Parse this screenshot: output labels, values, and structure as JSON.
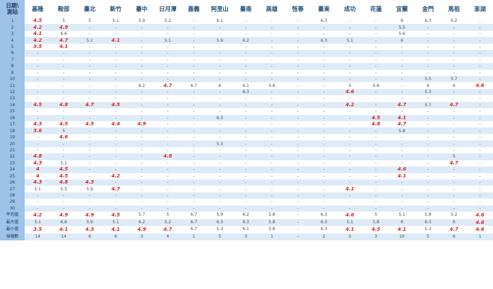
{
  "corner": [
    "日期\\",
    "測站"
  ],
  "stations": [
    "基隆",
    "鞍部",
    "臺北",
    "新竹",
    "臺中",
    "日月潭",
    "嘉義",
    "阿里山",
    "臺南",
    "高雄",
    "恆春",
    "臺東",
    "成功",
    "花蓮",
    "宜蘭",
    "金門",
    "馬祖",
    "澎湖"
  ],
  "rows": [
    {
      "label": "1",
      "cells": [
        "4.5",
        "5",
        "5",
        "5.1",
        "5.9",
        "5.2",
        "-",
        "6.1",
        "-",
        "-",
        "-",
        "6.3",
        "-",
        "-",
        "6",
        "6.3",
        "5.2",
        "-"
      ],
      "hl": [
        0
      ]
    },
    {
      "label": "2",
      "cells": [
        "4.2",
        "4.9",
        "-",
        "-",
        "-",
        "-",
        "-",
        "-",
        "-",
        "-",
        "-",
        "-",
        "-",
        "-",
        "5.5",
        "-",
        "-",
        "-"
      ],
      "hl": [
        0,
        1
      ]
    },
    {
      "label": "3",
      "cells": [
        "4.1",
        "6.6",
        "-",
        "-",
        "-",
        "-",
        "-",
        "-",
        "-",
        "-",
        "-",
        "-",
        "-",
        "-",
        "5.6",
        "-",
        "-",
        "-"
      ],
      "hl": [
        0
      ]
    },
    {
      "label": "4",
      "cells": [
        "4.2",
        "4.7",
        "5.1",
        "4.1",
        "-",
        "5.1",
        "-",
        "5.9",
        "6.2",
        "-",
        "-",
        "6.3",
        "5.1",
        "-",
        "6",
        "-",
        "-",
        "-"
      ],
      "hl": [
        0,
        1,
        3
      ]
    },
    {
      "label": "5",
      "cells": [
        "3.5",
        "4.1",
        "-",
        "-",
        "-",
        "-",
        "-",
        "-",
        "-",
        "-",
        "-",
        "-",
        "-",
        "-",
        "-",
        "-",
        "-",
        "-"
      ],
      "hl": [
        0,
        1
      ]
    },
    {
      "label": "6",
      "cells": [
        "-",
        "-",
        "-",
        "-",
        "-",
        "-",
        "-",
        "-",
        "-",
        "-",
        "-",
        "-",
        "-",
        "-",
        "-",
        "-",
        "-",
        "-"
      ],
      "hl": []
    },
    {
      "label": "7",
      "cells": [
        "-",
        "-",
        "-",
        "-",
        "-",
        "-",
        "-",
        "-",
        "-",
        "-",
        "-",
        "-",
        "-",
        "-",
        "-",
        "-",
        "-",
        "-"
      ],
      "hl": []
    },
    {
      "label": "8",
      "cells": [
        "-",
        "-",
        "-",
        "-",
        "-",
        "-",
        "-",
        "-",
        "-",
        "-",
        "-",
        "-",
        "-",
        "-",
        "-",
        "-",
        "-",
        "-"
      ],
      "hl": []
    },
    {
      "label": "9",
      "cells": [
        "-",
        "-",
        "-",
        "-",
        "-",
        "-",
        "-",
        "-",
        "-",
        "-",
        "-",
        "-",
        "-",
        "-",
        "-",
        "-",
        "-",
        "-"
      ],
      "hl": []
    },
    {
      "label": "10",
      "cells": [
        "-",
        "-",
        "-",
        "-",
        "-",
        "-",
        "-",
        "-",
        "-",
        "-",
        "-",
        "-",
        "-",
        "-",
        "-",
        "5.5",
        "5.7",
        "-"
      ],
      "hl": []
    },
    {
      "label": "11",
      "cells": [
        "-",
        "-",
        "-",
        "-",
        "6.2",
        "4.7",
        "6.7",
        "6",
        "6.1",
        "5.8",
        "-",
        "-",
        "5",
        "5.8",
        "-",
        "6",
        "6",
        "4.6"
      ],
      "hl": [
        5,
        17
      ]
    },
    {
      "label": "12",
      "cells": [
        "-",
        "-",
        "-",
        "-",
        "-",
        "-",
        "-",
        "-",
        "6.3",
        "-",
        "-",
        "-",
        "4.6",
        "-",
        "-",
        "5.3",
        "-",
        "-"
      ],
      "hl": [
        12
      ]
    },
    {
      "label": "13",
      "cells": [
        "-",
        "-",
        "-",
        "-",
        "-",
        "-",
        "-",
        "-",
        "-",
        "-",
        "-",
        "-",
        "-",
        "-",
        "-",
        "-",
        "-",
        "-"
      ],
      "hl": []
    },
    {
      "label": "14",
      "cells": [
        "4.5",
        "4.8",
        "4.7",
        "4.5",
        "-",
        "-",
        "-",
        "-",
        "-",
        "-",
        "-",
        "-",
        "4.2",
        "-",
        "4.7",
        "5.7",
        "4.7",
        "-"
      ],
      "hl": [
        0,
        1,
        2,
        3,
        12,
        14,
        16
      ]
    },
    {
      "label": "15",
      "cells": [
        "-",
        "-",
        "-",
        "-",
        "-",
        "-",
        "-",
        "-",
        "-",
        "-",
        "-",
        "-",
        "-",
        "-",
        "-",
        "-",
        "-",
        "-"
      ],
      "hl": []
    },
    {
      "label": "16",
      "cells": [
        "-",
        "-",
        "-",
        "-",
        "-",
        "-",
        "-",
        "6.3",
        "-",
        "-",
        "-",
        "-",
        "-",
        "4.5",
        "4.1",
        "-",
        "-",
        "-"
      ],
      "hl": [
        13,
        14
      ]
    },
    {
      "label": "17",
      "cells": [
        "4.3",
        "4.5",
        "4.5",
        "4.4",
        "4.9",
        "-",
        "-",
        "-",
        "-",
        "-",
        "-",
        "-",
        "-",
        "4.8",
        "4.7",
        "-",
        "-",
        "-"
      ],
      "hl": [
        0,
        1,
        2,
        3,
        4,
        13,
        14
      ]
    },
    {
      "label": "18",
      "cells": [
        "3.6",
        "5",
        "-",
        "-",
        "-",
        "-",
        "-",
        "-",
        "-",
        "-",
        "-",
        "-",
        "-",
        "-",
        "5.8",
        "-",
        "-",
        "-"
      ],
      "hl": [
        0
      ]
    },
    {
      "label": "19",
      "cells": [
        "-",
        "4.6",
        "-",
        "-",
        "-",
        "-",
        "-",
        "-",
        "-",
        "-",
        "-",
        "-",
        "-",
        "-",
        "-",
        "-",
        "-",
        "-"
      ],
      "hl": [
        1
      ]
    },
    {
      "label": "20",
      "cells": [
        "-",
        "-",
        "-",
        "-",
        "-",
        "-",
        "-",
        "5.3",
        "-",
        "-",
        "-",
        "-",
        "-",
        "-",
        "-",
        "-",
        "-",
        "-"
      ],
      "hl": []
    },
    {
      "label": "21",
      "cells": [
        "-",
        "-",
        "-",
        "-",
        "-",
        "-",
        "-",
        "-",
        "-",
        "-",
        "-",
        "-",
        "-",
        "-",
        "-",
        "-",
        "-",
        "-"
      ],
      "hl": []
    },
    {
      "label": "22",
      "cells": [
        "4.8",
        "-",
        "-",
        "-",
        "-",
        "4.8",
        "-",
        "-",
        "-",
        "-",
        "-",
        "-",
        "-",
        "-",
        "-",
        "-",
        "5",
        "-"
      ],
      "hl": [
        0,
        5
      ]
    },
    {
      "label": "23",
      "cells": [
        "4.3",
        "5.1",
        "-",
        "-",
        "-",
        "-",
        "-",
        "-",
        "-",
        "-",
        "-",
        "-",
        "-",
        "-",
        "-",
        "-",
        "4.7",
        "-"
      ],
      "hl": [
        0,
        16
      ]
    },
    {
      "label": "24",
      "cells": [
        "4",
        "4.5",
        "-",
        "-",
        "-",
        "-",
        "-",
        "-",
        "-",
        "-",
        "-",
        "-",
        "-",
        "-",
        "4.6",
        "-",
        "-",
        "-"
      ],
      "hl": [
        0,
        1,
        14
      ]
    },
    {
      "label": "25",
      "cells": [
        "4",
        "4.5",
        "-",
        "4.2",
        "-",
        "-",
        "-",
        "-",
        "-",
        "-",
        "-",
        "-",
        "-",
        "-",
        "4.1",
        "-",
        "-",
        "-"
      ],
      "hl": [
        0,
        1,
        3,
        14
      ]
    },
    {
      "label": "26",
      "cells": [
        "4.3",
        "4.8",
        "4.3",
        "-",
        "-",
        "-",
        "-",
        "-",
        "-",
        "-",
        "-",
        "-",
        "-",
        "-",
        "-",
        "-",
        "-",
        "-"
      ],
      "hl": [
        0,
        1,
        2
      ]
    },
    {
      "label": "27",
      "cells": [
        "5.1",
        "5.3",
        "5.9",
        "4.7",
        "-",
        "-",
        "-",
        "-",
        "-",
        "-",
        "-",
        "-",
        "4.1",
        "-",
        "-",
        "-",
        "-",
        "-"
      ],
      "hl": [
        3,
        12
      ]
    },
    {
      "label": "28",
      "cells": [
        "-",
        "-",
        "-",
        "-",
        "-",
        "-",
        "-",
        "-",
        "-",
        "-",
        "-",
        "-",
        "-",
        "-",
        "-",
        "-",
        "-",
        "-"
      ],
      "hl": []
    },
    {
      "label": "29",
      "cells": [
        "-",
        "-",
        "-",
        "-",
        "-",
        "-",
        "-",
        "-",
        "-",
        "-",
        "-",
        "-",
        "-",
        "-",
        "-",
        "-",
        "-",
        "-"
      ],
      "hl": []
    },
    {
      "label": "30",
      "cells": [
        "-",
        "-",
        "-",
        "-",
        "-",
        "-",
        "-",
        "-",
        "-",
        "-",
        "-",
        "-",
        "-",
        "-",
        "-",
        "-",
        "-",
        "-"
      ],
      "hl": []
    }
  ],
  "stats": [
    {
      "label": "平均值",
      "cells": [
        "4.2",
        "4.9",
        "4.9",
        "4.5",
        "5.7",
        "5",
        "6.7",
        "5.9",
        "6.2",
        "5.8",
        "-",
        "6.3",
        "4.6",
        "5",
        "5.1",
        "5.8",
        "5.2",
        "4.6"
      ],
      "hl": [
        0,
        1,
        2,
        3,
        12,
        17
      ]
    },
    {
      "label": "最大值",
      "cells": [
        "5.1",
        "6.6",
        "5.9",
        "5.1",
        "6.2",
        "5.2",
        "6.7",
        "6.3",
        "6.3",
        "5.8",
        "-",
        "6.3",
        "5.1",
        "5.8",
        "6",
        "6.3",
        "6",
        "4.6"
      ],
      "hl": [
        17
      ]
    },
    {
      "label": "最小值",
      "cells": [
        "3.5",
        "4.1",
        "4.3",
        "4.1",
        "4.9",
        "4.7",
        "6.7",
        "5.3",
        "6.1",
        "5.8",
        "-",
        "6.3",
        "4.1",
        "4.5",
        "4.1",
        "5.3",
        "4.7",
        "4.6"
      ],
      "hl": [
        0,
        1,
        2,
        3,
        4,
        5,
        12,
        13,
        14,
        16,
        17
      ]
    },
    {
      "label": "採樣數",
      "cells": [
        "14",
        "14",
        "6",
        "6",
        "3",
        "4",
        "1",
        "5",
        "3",
        "1",
        "-",
        "2",
        "5",
        "3",
        "10",
        "5",
        "6",
        "1"
      ],
      "hl": []
    }
  ]
}
